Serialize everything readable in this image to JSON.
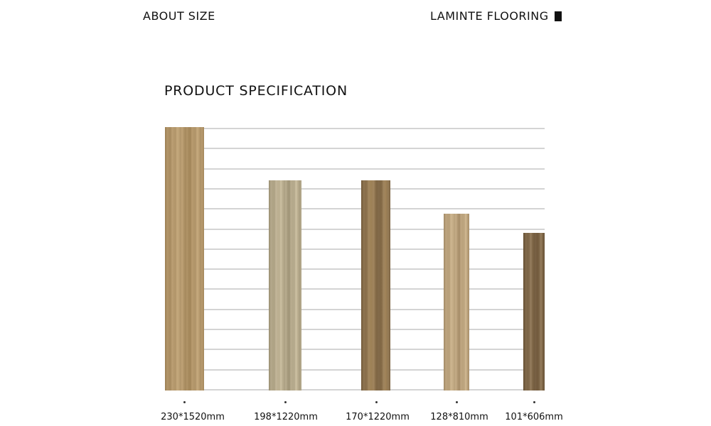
{
  "header": {
    "left": "ABOUT SIZE",
    "right": "LAMINTE FLOORING"
  },
  "title": "PRODUCT SPECIFICATION",
  "products": [
    {
      "size": "230*1520mm",
      "color_light": "#c2a578",
      "color_dark": "#a88a5c"
    },
    {
      "size": "198*1220mm",
      "color_light": "#c8bb9c",
      "color_dark": "#a89c7e"
    },
    {
      "size": "170*1220mm",
      "color_light": "#a88a5e",
      "color_dark": "#7a6140"
    },
    {
      "size": "128*810mm",
      "color_light": "#cdb48c",
      "color_dark": "#b09670"
    },
    {
      "size": "101*606mm",
      "color_light": "#8f7655",
      "color_dark": "#6e5638"
    }
  ]
}
